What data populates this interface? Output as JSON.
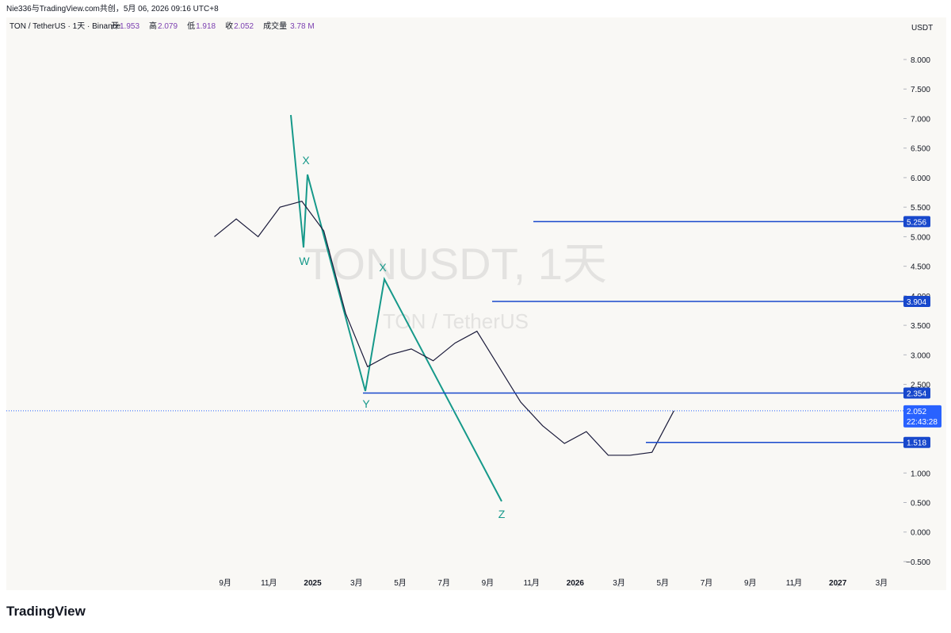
{
  "header": {
    "snapshot": "Nie336与TradingView.com共创，5月 06, 2026 09:16 UTC+8",
    "symbol": "TON / TetherUS · 1天 · Binance",
    "ohlc": [
      {
        "label": "开",
        "value": 1.953
      },
      {
        "label": "高",
        "value": 2.079
      },
      {
        "label": "低",
        "value": 1.918
      },
      {
        "label": "收",
        "value": 2.052
      }
    ],
    "volume_label": "成交量",
    "volume": "3.78 M"
  },
  "currency": "USDT",
  "logo": "TradingView",
  "watermark": {
    "title": "TONUSDT, 1天",
    "subtitle": "TON / TetherUS"
  },
  "waves": [
    "W",
    "X",
    "Y",
    "X",
    "Z"
  ],
  "chart_data": {
    "type": "line",
    "color": "#1a1a3a",
    "x": [
      "2024-08",
      "2024-09",
      "2024-10",
      "2024-11",
      "2024-12",
      "2025-01",
      "2025-02",
      "2025-03",
      "2025-04",
      "2025-05",
      "2025-06",
      "2025-07",
      "2025-08",
      "2025-09",
      "2025-10",
      "2025-11",
      "2025-12",
      "2026-01",
      "2026-02",
      "2026-03",
      "2026-04",
      "2026-05"
    ],
    "values": [
      5.0,
      5.3,
      5.0,
      5.5,
      5.6,
      5.1,
      3.7,
      2.8,
      3.0,
      3.1,
      2.9,
      3.2,
      3.4,
      2.8,
      2.2,
      1.8,
      1.5,
      1.7,
      1.3,
      1.3,
      1.35,
      2.052
    ],
    "xlim": [
      "2023-11",
      "2027-04"
    ],
    "xticks": [
      {
        "value": "2024-09",
        "label": "9月"
      },
      {
        "value": "2024-11",
        "label": "11月"
      },
      {
        "value": "2025-01",
        "label": "2025"
      },
      {
        "value": "2025-03",
        "label": "3月"
      },
      {
        "value": "2025-05",
        "label": "5月"
      },
      {
        "value": "2025-07",
        "label": "7月"
      },
      {
        "value": "2025-09",
        "label": "9月"
      },
      {
        "value": "2025-11",
        "label": "11月"
      },
      {
        "value": "2026-01",
        "label": "2026"
      },
      {
        "value": "2026-03",
        "label": "3月"
      },
      {
        "value": "2026-05",
        "label": "5月"
      },
      {
        "value": "2026-07",
        "label": "7月"
      },
      {
        "value": "2026-09",
        "label": "9月"
      },
      {
        "value": "2026-11",
        "label": "11月"
      },
      {
        "value": "2027-01",
        "label": "2027"
      },
      {
        "value": "2027-03",
        "label": "3月"
      }
    ],
    "ylim": [
      -0.93,
      8.47
    ],
    "yticks": [
      {
        "value": 8,
        "label": "8.000"
      },
      {
        "value": 7.5,
        "label": "7.500"
      },
      {
        "value": 7,
        "label": "7.000"
      },
      {
        "value": 6.5,
        "label": "6.500"
      },
      {
        "value": 6,
        "label": "6.000"
      },
      {
        "value": 5.5,
        "label": "5.500"
      },
      {
        "value": 5,
        "label": "5.000"
      },
      {
        "value": 4.5,
        "label": "4.500"
      },
      {
        "value": 4,
        "label": "4.000"
      },
      {
        "value": 3.5,
        "label": "3.500"
      },
      {
        "value": 3,
        "label": "3.000"
      },
      {
        "value": 2.5,
        "label": "2.500"
      },
      {
        "value": 2,
        "label": "2.000"
      },
      {
        "value": 1.5,
        "label": "1.500"
      },
      {
        "value": 1,
        "label": "1.000"
      },
      {
        "value": 0.5,
        "label": "0.500"
      },
      {
        "value": 0,
        "label": "0.000"
      },
      {
        "value": -0.5,
        "label": "−0.500"
      }
    ],
    "levels": [
      5.256,
      3.904,
      2.354,
      1.518
    ],
    "level_color": "#1848cc",
    "last": {
      "value": 2.052,
      "countdown": "22:43:28"
    }
  }
}
